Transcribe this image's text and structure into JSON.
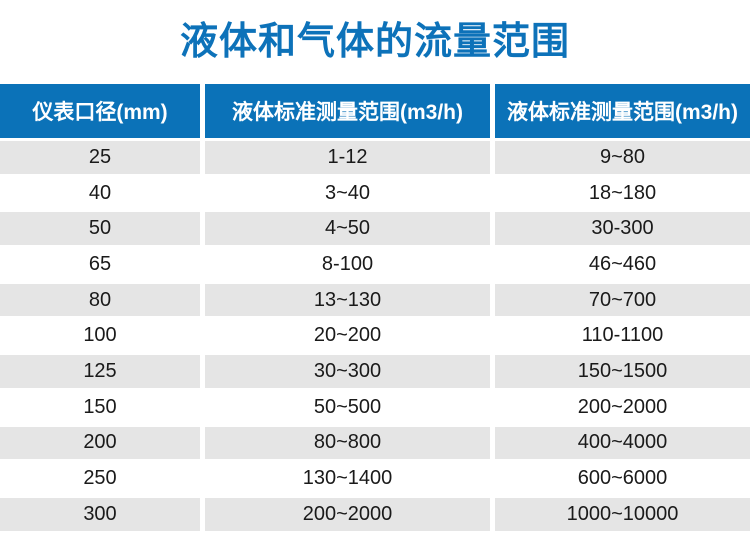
{
  "title": "液体和气体的流量范围",
  "colors": {
    "title_blue": "#0d72b9",
    "header_blue": "#0b72b8",
    "row_gray": "#e5e5e5",
    "cell_text": "#1a1a1a"
  },
  "table": {
    "headers": [
      "仪表口径(mm)",
      "液体标准测量范围(m3/h)",
      "液体标准测量范围(m3/h)"
    ],
    "rows": [
      [
        "25",
        "1-12",
        "9~80"
      ],
      [
        "40",
        "3~40",
        "18~180"
      ],
      [
        "50",
        "4~50",
        "30-300"
      ],
      [
        "65",
        "8-100",
        "46~460"
      ],
      [
        "80",
        "13~130",
        "70~700"
      ],
      [
        "100",
        "20~200",
        "110-1100"
      ],
      [
        "125",
        "30~300",
        "150~1500"
      ],
      [
        "150",
        "50~500",
        "200~2000"
      ],
      [
        "200",
        "80~800",
        "400~4000"
      ],
      [
        "250",
        "130~1400",
        "600~6000"
      ],
      [
        "300",
        "200~2000",
        "1000~10000"
      ]
    ]
  }
}
